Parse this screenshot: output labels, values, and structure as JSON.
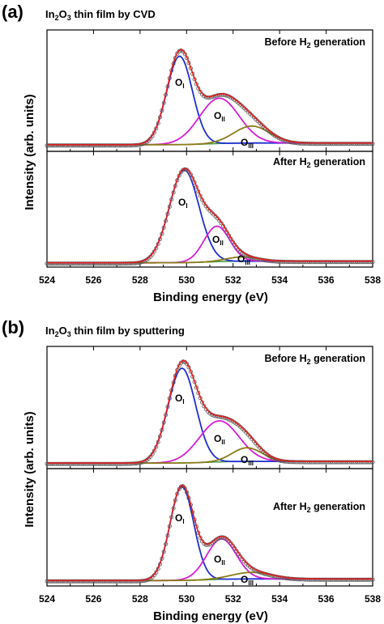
{
  "figure": {
    "panels": [
      {
        "letter": "(a)",
        "title": {
          "main": "In",
          "sub1": "2",
          "mid": "O",
          "sub2": "3",
          "rest": " thin film by CVD"
        },
        "xlabel": "Binding energy (eV)",
        "ylabel": "Intensity (arb. units)"
      },
      {
        "letter": "(b)",
        "title": {
          "main": "In",
          "sub1": "2",
          "mid": "O",
          "sub2": "3",
          "rest": " thin film by sputtering"
        },
        "xlabel": "Binding energy (eV)",
        "ylabel": "Intensity (arb. units)"
      }
    ],
    "subplot_labels": {
      "before": {
        "pre": "Before H",
        "sub": "2",
        "post": " generation"
      },
      "after": {
        "pre": "After H",
        "sub": "2",
        "post": " generation"
      }
    },
    "peak_labels": {
      "OI": {
        "main": "O",
        "sub": "I"
      },
      "OII": {
        "main": "O",
        "sub": "II"
      },
      "OIII": {
        "main": "O",
        "sub": "III"
      }
    },
    "colors": {
      "measured": "#555555",
      "fit_envelope": "#e02020",
      "O_I": "#1f2fd0",
      "O_II": "#d61ed6",
      "O_III": "#8a7a18",
      "background": "#4a9a4a"
    }
  },
  "chart_data": [
    {
      "type": "line",
      "title": "In2O3 thin film by CVD - Before H2 generation",
      "xlabel": "Binding energy (eV)",
      "ylabel": "Intensity (arb. units)",
      "xlim": [
        524,
        538
      ],
      "ylim": [
        0,
        1
      ],
      "xticks": [
        524,
        526,
        528,
        530,
        532,
        534,
        536,
        538
      ],
      "baseline": 0.03,
      "series": [
        {
          "name": "O_I",
          "center": 529.7,
          "fwhm": 1.3,
          "height": 0.78
        },
        {
          "name": "O_II",
          "center": 531.4,
          "fwhm": 2.0,
          "height": 0.4
        },
        {
          "name": "O_III",
          "center": 532.8,
          "fwhm": 1.8,
          "height": 0.15
        }
      ]
    },
    {
      "type": "line",
      "title": "In2O3 thin film by CVD - After H2 generation",
      "xlabel": "Binding energy (eV)",
      "ylabel": "Intensity (arb. units)",
      "xlim": [
        524,
        538
      ],
      "ylim": [
        0,
        1
      ],
      "xticks": [
        524,
        526,
        528,
        530,
        532,
        534,
        536,
        538
      ],
      "baseline": 0.01,
      "series": [
        {
          "name": "O_I",
          "center": 529.9,
          "fwhm": 1.5,
          "height": 0.86
        },
        {
          "name": "O_II",
          "center": 531.3,
          "fwhm": 1.3,
          "height": 0.33
        },
        {
          "name": "O_III",
          "center": 532.4,
          "fwhm": 1.6,
          "height": 0.04
        }
      ]
    },
    {
      "type": "line",
      "title": "In2O3 thin film by sputtering - Before H2 generation",
      "xlabel": "Binding energy (eV)",
      "ylabel": "Intensity (arb. units)",
      "xlim": [
        524,
        538
      ],
      "ylim": [
        0,
        1
      ],
      "xticks": [
        524,
        526,
        528,
        530,
        532,
        534,
        536,
        538
      ],
      "baseline": 0.02,
      "series": [
        {
          "name": "O_I",
          "center": 529.8,
          "fwhm": 1.4,
          "height": 0.83
        },
        {
          "name": "O_II",
          "center": 531.4,
          "fwhm": 2.0,
          "height": 0.36
        },
        {
          "name": "O_III",
          "center": 532.6,
          "fwhm": 1.5,
          "height": 0.12
        }
      ]
    },
    {
      "type": "line",
      "title": "In2O3 thin film by sputtering - After H2 generation",
      "xlabel": "Binding energy (eV)",
      "ylabel": "Intensity (arb. units)",
      "xlim": [
        524,
        538
      ],
      "ylim": [
        0,
        1
      ],
      "xticks": [
        524,
        526,
        528,
        530,
        532,
        534,
        536,
        538
      ],
      "xtick_labels": [
        "524",
        "526",
        "528",
        "530",
        "532",
        "534",
        "536",
        "538"
      ],
      "baseline": 0.02,
      "series": [
        {
          "name": "O_I",
          "center": 529.8,
          "fwhm": 1.2,
          "height": 0.86
        },
        {
          "name": "O_II",
          "center": 531.5,
          "fwhm": 1.5,
          "height": 0.37
        },
        {
          "name": "O_III",
          "center": 532.8,
          "fwhm": 2.0,
          "height": 0.06
        }
      ]
    }
  ]
}
